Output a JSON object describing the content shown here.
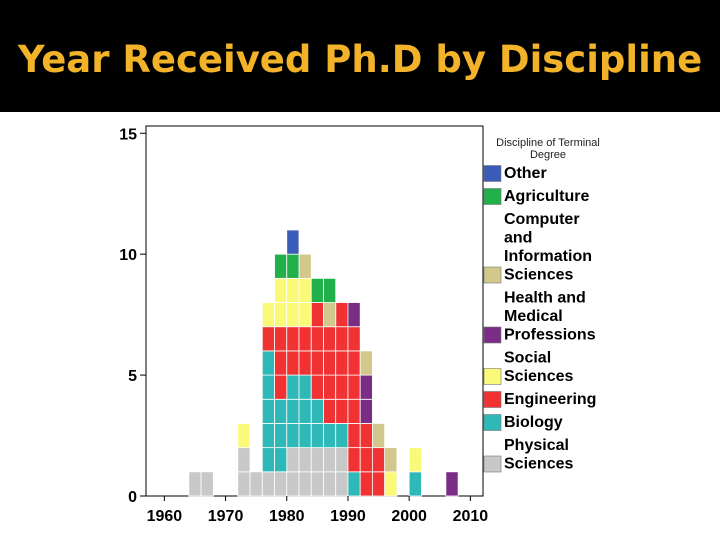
{
  "slide": {
    "title": "Year Received Ph.D by Discipline"
  },
  "chart_data": {
    "type": "bar",
    "stacked": true,
    "x_label_ticks": [
      "1960",
      "1970",
      "1980",
      "1990",
      "2000",
      "2010"
    ],
    "x_tick_values": [
      1960,
      1970,
      1980,
      1990,
      2000,
      2010
    ],
    "y_ticks": [
      0,
      5,
      10,
      15
    ],
    "ylim": [
      0,
      15.3
    ],
    "xlim": [
      1957,
      2012
    ],
    "bin_width": 2,
    "legend_title": "Discipline of Terminal Degree",
    "legend_position": "right",
    "series": [
      {
        "name": "Physical Sciences",
        "color": "#c8c8c8",
        "values": [
          [
            1964,
            1
          ],
          [
            1966,
            1
          ],
          [
            1972,
            2
          ],
          [
            1974,
            1
          ],
          [
            1976,
            1
          ],
          [
            1978,
            1
          ],
          [
            1980,
            2
          ],
          [
            1982,
            2
          ],
          [
            1984,
            2
          ],
          [
            1986,
            2
          ],
          [
            1988,
            2
          ],
          [
            1990,
            0
          ]
        ]
      },
      {
        "name": "Biology",
        "color": "#2eb8b8",
        "values": [
          [
            1974,
            0
          ],
          [
            1976,
            5
          ],
          [
            1978,
            3
          ],
          [
            1980,
            3
          ],
          [
            1982,
            3
          ],
          [
            1984,
            2
          ],
          [
            1986,
            1
          ],
          [
            1988,
            1
          ],
          [
            1990,
            1
          ],
          [
            1992,
            0
          ],
          [
            2000,
            1
          ]
        ]
      },
      {
        "name": "Engineering",
        "color": "#f03232",
        "values": [
          [
            1976,
            1
          ],
          [
            1978,
            3
          ],
          [
            1980,
            2
          ],
          [
            1982,
            2
          ],
          [
            1984,
            4
          ],
          [
            1986,
            4
          ],
          [
            1988,
            5
          ],
          [
            1990,
            6
          ],
          [
            1992,
            3
          ],
          [
            1994,
            2
          ]
        ]
      },
      {
        "name": "Social Sciences",
        "color": "#fafa78",
        "values": [
          [
            1972,
            1
          ],
          [
            1976,
            1
          ],
          [
            1978,
            2
          ],
          [
            1980,
            2
          ],
          [
            1982,
            2
          ],
          [
            1996,
            1
          ],
          [
            2000,
            1
          ]
        ]
      },
      {
        "name": "Health and Medical Professions",
        "color": "#7a2d85",
        "values": [
          [
            1990,
            1
          ],
          [
            1992,
            2
          ],
          [
            2006,
            1
          ]
        ]
      },
      {
        "name": "Computer and Information Sciences",
        "color": "#d2c88c",
        "values": [
          [
            1982,
            1
          ],
          [
            1986,
            1
          ],
          [
            1992,
            1
          ],
          [
            1994,
            1
          ],
          [
            1996,
            1
          ]
        ]
      },
      {
        "name": "Agriculture",
        "color": "#22b04a",
        "values": [
          [
            1978,
            1
          ],
          [
            1980,
            1
          ],
          [
            1984,
            1
          ],
          [
            1986,
            1
          ]
        ]
      },
      {
        "name": "Other",
        "color": "#3a5cb8",
        "values": [
          [
            1980,
            1
          ]
        ]
      }
    ],
    "legend": [
      {
        "label": "Other",
        "color": "#3a5cb8"
      },
      {
        "label": "Agriculture",
        "color": "#22b04a"
      },
      {
        "label": "Computer and Information Sciences",
        "color": "#d2c88c"
      },
      {
        "label": "Health and Medical Professions",
        "color": "#7a2d85"
      },
      {
        "label": "Social Sciences",
        "color": "#fafa78"
      },
      {
        "label": "Engineering",
        "color": "#f03232"
      },
      {
        "label": "Biology",
        "color": "#2eb8b8"
      },
      {
        "label": "Physical Sciences",
        "color": "#c8c8c8"
      }
    ]
  }
}
